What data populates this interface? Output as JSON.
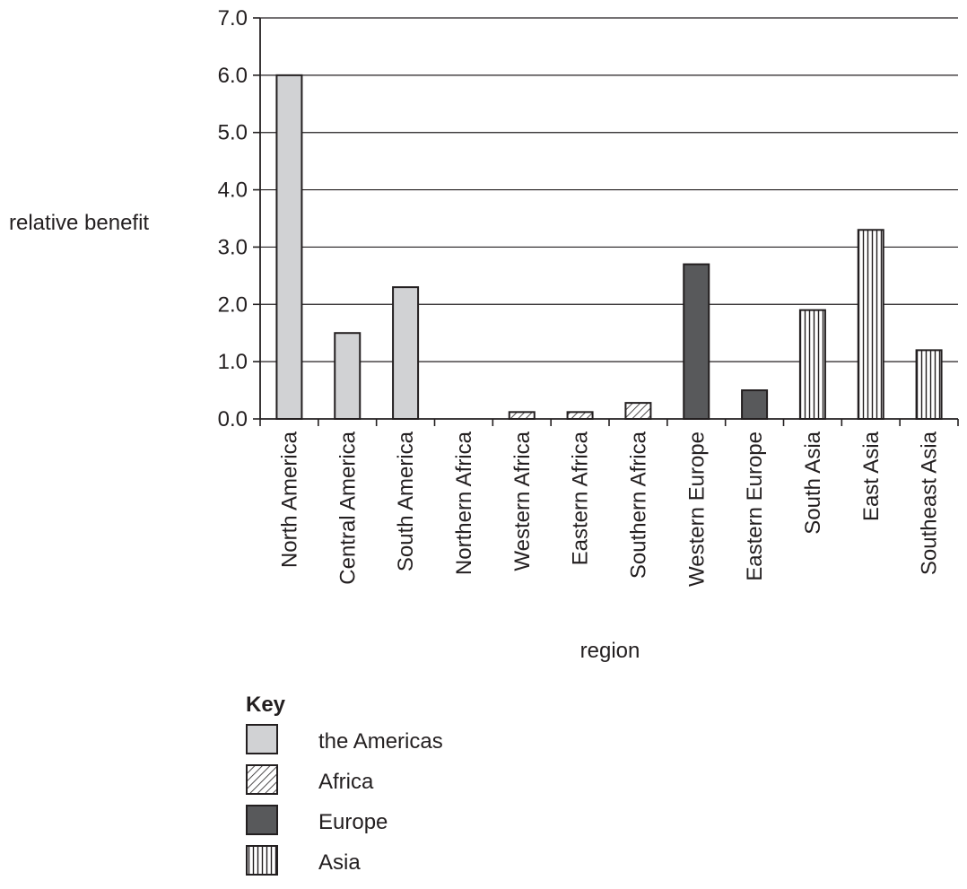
{
  "chart_data": {
    "type": "bar",
    "xlabel": "region",
    "ylabel": "relative benefit",
    "ylim": [
      0,
      7.0
    ],
    "yticks": [
      "0.0",
      "1.0",
      "2.0",
      "3.0",
      "4.0",
      "5.0",
      "6.0",
      "7.0"
    ],
    "grid": true,
    "categories": [
      "North America",
      "Central America",
      "South America",
      "Northern Africa",
      "Western Africa",
      "Eastern Africa",
      "Southern Africa",
      "Western Europe",
      "Eastern Europe",
      "South Asia",
      "East Asia",
      "Southeast Asia"
    ],
    "values": [
      6.0,
      1.5,
      2.3,
      0.0,
      0.12,
      0.12,
      0.28,
      2.7,
      0.5,
      1.9,
      3.3,
      1.2
    ],
    "groups": [
      "americas",
      "americas",
      "americas",
      "africa",
      "africa",
      "africa",
      "africa",
      "europe",
      "europe",
      "asia",
      "asia",
      "asia"
    ],
    "legend": {
      "title": "Key",
      "placement": "bottom-left",
      "items": [
        {
          "key": "americas",
          "label": "the Americas",
          "fill": "#d1d2d4",
          "pattern": "solid"
        },
        {
          "key": "africa",
          "label": "Africa",
          "fill": "#ffffff",
          "pattern": "diagonal"
        },
        {
          "key": "europe",
          "label": "Europe",
          "fill": "#58595b",
          "pattern": "solid"
        },
        {
          "key": "asia",
          "label": "Asia",
          "fill": "#ffffff",
          "pattern": "vertical"
        }
      ]
    }
  }
}
